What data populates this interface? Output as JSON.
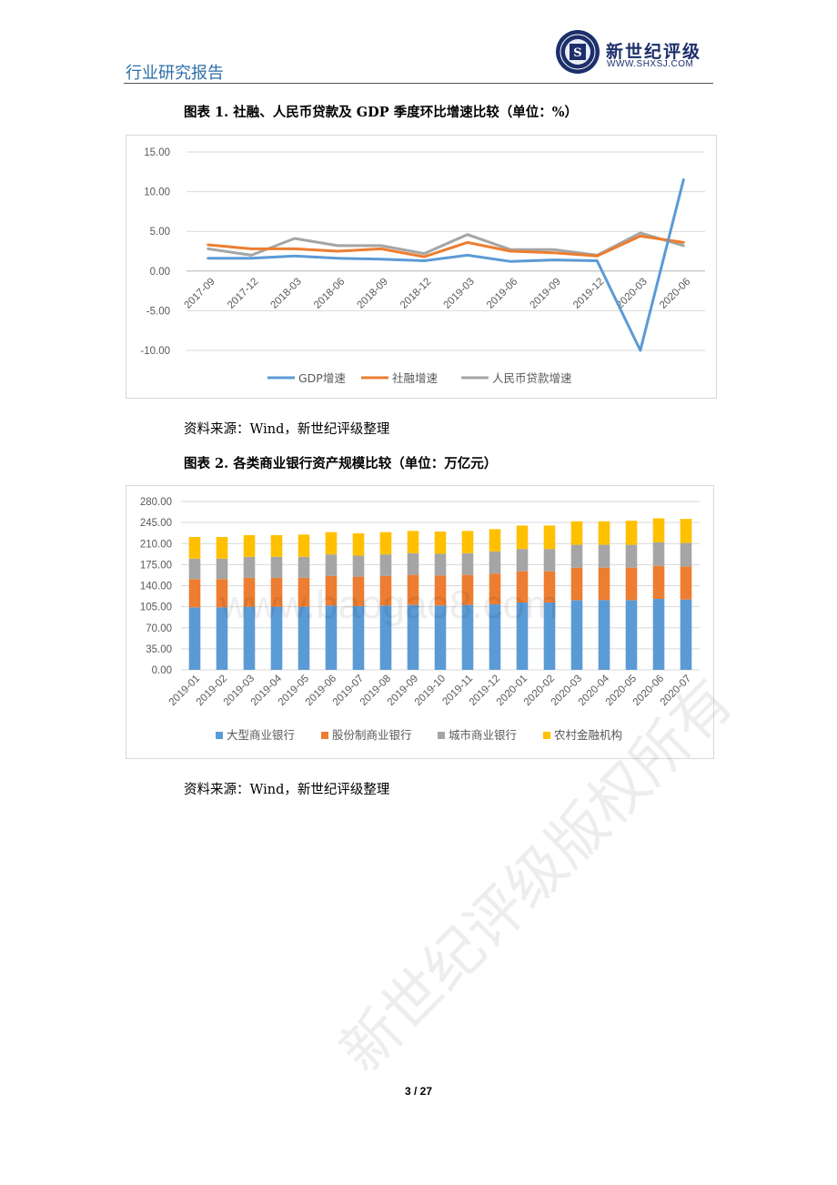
{
  "header": {
    "title": "行业研究报告",
    "logo_name": "新世纪评级",
    "logo_url": "WWW.SHXSJ.COM",
    "brand_color": "#1d2f6b",
    "title_color": "#2e6fa8"
  },
  "figure1": {
    "title": "图表 1.  社融、人民币贷款及 GDP 季度环比增速比较（单位：%）",
    "source": "资料来源：Wind，新世纪评级整理"
  },
  "figure2": {
    "title": "图表 2.  各类商业银行资产规模比较（单位：万亿元）",
    "source": "资料来源：Wind，新世纪评级整理"
  },
  "watermark": {
    "text": "新世纪评级版权所有",
    "url": "www.baogao8.com"
  },
  "footer": {
    "page": "3 / 27"
  },
  "chart_data": [
    {
      "type": "line",
      "title": "",
      "categories": [
        "2017-09",
        "2017-12",
        "2018-03",
        "2018-06",
        "2018-09",
        "2018-12",
        "2019-03",
        "2019-06",
        "2019-09",
        "2019-12",
        "2020-03",
        "2020-06"
      ],
      "series": [
        {
          "name": "GDP增速",
          "color": "#5b9bd5",
          "values": [
            1.6,
            1.6,
            1.9,
            1.6,
            1.5,
            1.3,
            2.0,
            1.2,
            1.4,
            1.3,
            -10.0,
            11.5
          ]
        },
        {
          "name": "社融增速",
          "color": "#ed7d31",
          "values": [
            3.3,
            2.8,
            2.8,
            2.5,
            2.8,
            1.8,
            3.6,
            2.5,
            2.3,
            1.9,
            4.4,
            3.6
          ]
        },
        {
          "name": "人民币贷款增速",
          "color": "#a5a5a5",
          "values": [
            2.8,
            2.0,
            4.1,
            3.2,
            3.2,
            2.2,
            4.6,
            2.7,
            2.7,
            2.0,
            4.8,
            3.2
          ]
        }
      ],
      "ylim": [
        -10,
        15
      ],
      "yticks": [
        "15.00",
        "10.00",
        "5.00",
        "0.00",
        "-5.00",
        "-10.00"
      ],
      "grid": true,
      "legend": "bottom"
    },
    {
      "type": "bar",
      "stacked": true,
      "title": "",
      "categories": [
        "2019-01",
        "2019-02",
        "2019-03",
        "2019-04",
        "2019-05",
        "2019-06",
        "2019-07",
        "2019-08",
        "2019-09",
        "2019-10",
        "2019-11",
        "2019-12",
        "2020-01",
        "2020-02",
        "2020-03",
        "2020-04",
        "2020-05",
        "2020-06",
        "2020-07"
      ],
      "series": [
        {
          "name": "大型商业银行",
          "color": "#5b9bd5",
          "values": [
            104,
            104,
            105,
            105,
            105,
            107,
            106,
            107,
            108,
            107,
            108,
            109,
            112,
            112,
            116,
            116,
            116,
            118,
            117
          ]
        },
        {
          "name": "股份制商业银行",
          "color": "#ed7d31",
          "values": [
            47,
            47,
            48,
            48,
            48,
            49,
            49,
            49,
            50,
            50,
            50,
            51,
            52,
            52,
            54,
            54,
            54,
            55,
            55
          ]
        },
        {
          "name": "城市商业银行",
          "color": "#a5a5a5",
          "values": [
            34,
            34,
            35,
            35,
            35,
            36,
            35,
            36,
            36,
            36,
            36,
            37,
            37,
            37,
            38,
            38,
            38,
            39,
            39
          ]
        },
        {
          "name": "农村金融机构",
          "color": "#ffc000",
          "values": [
            36,
            36,
            36,
            36,
            37,
            37,
            37,
            37,
            37,
            37,
            37,
            37,
            39,
            39,
            39,
            39,
            40,
            40,
            40
          ]
        }
      ],
      "ylim": [
        0,
        280
      ],
      "yticks": [
        "280.00",
        "245.00",
        "210.00",
        "175.00",
        "140.00",
        "105.00",
        "70.00",
        "35.00",
        "0.00"
      ],
      "grid": true,
      "legend": "bottom"
    }
  ]
}
